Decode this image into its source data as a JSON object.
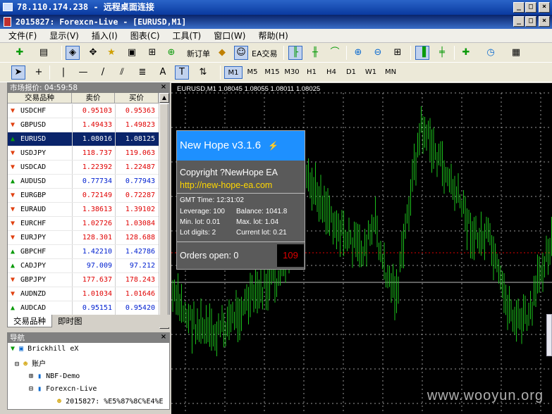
{
  "rdp": {
    "title": "78.110.174.238 - 远程桌面连接",
    "btn_min": "_",
    "btn_max": "□",
    "btn_close": "×"
  },
  "app": {
    "title": "2015827: Forexcn-Live - [EURUSD,M1]",
    "btn_min": "_",
    "btn_max": "□",
    "btn_close": "×"
  },
  "menu": [
    "文件(F)",
    "显示(V)",
    "插入(I)",
    "图表(C)",
    "工具(T)",
    "窗口(W)",
    "帮助(H)"
  ],
  "toolbar": {
    "new_order": "新订单",
    "ea_trade": "EA交易",
    "text_tool": "T",
    "label_tool": "A"
  },
  "timeframes": [
    "M1",
    "M5",
    "M15",
    "M30",
    "H1",
    "H4",
    "D1",
    "W1",
    "MN"
  ],
  "market": {
    "header": "市场报价: 04:59:58",
    "col_symbol": "交易品种",
    "col_bid": "卖价",
    "col_ask": "买价",
    "rows": [
      {
        "s": "USDCHF",
        "b": "0.95103",
        "a": "0.95363",
        "d": "dn",
        "c": "red"
      },
      {
        "s": "GBPUSD",
        "b": "1.49433",
        "a": "1.49823",
        "d": "dn",
        "c": "red"
      },
      {
        "s": "EURUSD",
        "b": "1.08016",
        "a": "1.08125",
        "d": "up",
        "c": "sel"
      },
      {
        "s": "USDJPY",
        "b": "118.737",
        "a": "119.063",
        "d": "dn",
        "c": "red"
      },
      {
        "s": "USDCAD",
        "b": "1.22392",
        "a": "1.22487",
        "d": "dn",
        "c": "red"
      },
      {
        "s": "AUDUSD",
        "b": "0.77734",
        "a": "0.77943",
        "d": "up",
        "c": "blue"
      },
      {
        "s": "EURGBP",
        "b": "0.72149",
        "a": "0.72287",
        "d": "dn",
        "c": "red"
      },
      {
        "s": "EURAUD",
        "b": "1.38613",
        "a": "1.39102",
        "d": "dn",
        "c": "red"
      },
      {
        "s": "EURCHF",
        "b": "1.02726",
        "a": "1.03084",
        "d": "dn",
        "c": "red"
      },
      {
        "s": "EURJPY",
        "b": "128.301",
        "a": "128.688",
        "d": "dn",
        "c": "red"
      },
      {
        "s": "GBPCHF",
        "b": "1.42210",
        "a": "1.42786",
        "d": "up",
        "c": "blue"
      },
      {
        "s": "CADJPY",
        "b": "97.009",
        "a": "97.212",
        "d": "up",
        "c": "blue"
      },
      {
        "s": "GBPJPY",
        "b": "177.637",
        "a": "178.243",
        "d": "dn",
        "c": "red"
      },
      {
        "s": "AUDNZD",
        "b": "1.01034",
        "a": "1.01646",
        "d": "dn",
        "c": "red"
      },
      {
        "s": "AUDCAD",
        "b": "0.95151",
        "a": "0.95420",
        "d": "up",
        "c": "blue"
      }
    ],
    "tab1": "交易品种",
    "tab2": "即时图"
  },
  "navigator": {
    "header": "导航",
    "root": "Brickhill eX",
    "accounts": "账户",
    "demo": "NBF-Demo",
    "live": "Forexcn-Live",
    "acct": "2015827: %E5%87%8C%E4%E"
  },
  "chart": {
    "symbol": "EURUSD,M1  1.08045 1.08055 1.08011 1.08025"
  },
  "ea": {
    "title": "New Hope v3.1.6",
    "copyright": "Copyright ?NewHope EA",
    "url": "http://new-hope-ea.com",
    "gmt": "GMT Time: 12:31:02",
    "lev": "Leverage: 100",
    "bal": "Balance: 1041.8",
    "minlot": "Min. lot: 0.01",
    "maxlot": "Max. lot: 1.04",
    "digits": "Lot digits: 2",
    "curlot": "Current lot: 0.21",
    "orders": "Orders open:  0",
    "level": "109"
  },
  "watermark": "www.wooyun.org"
}
